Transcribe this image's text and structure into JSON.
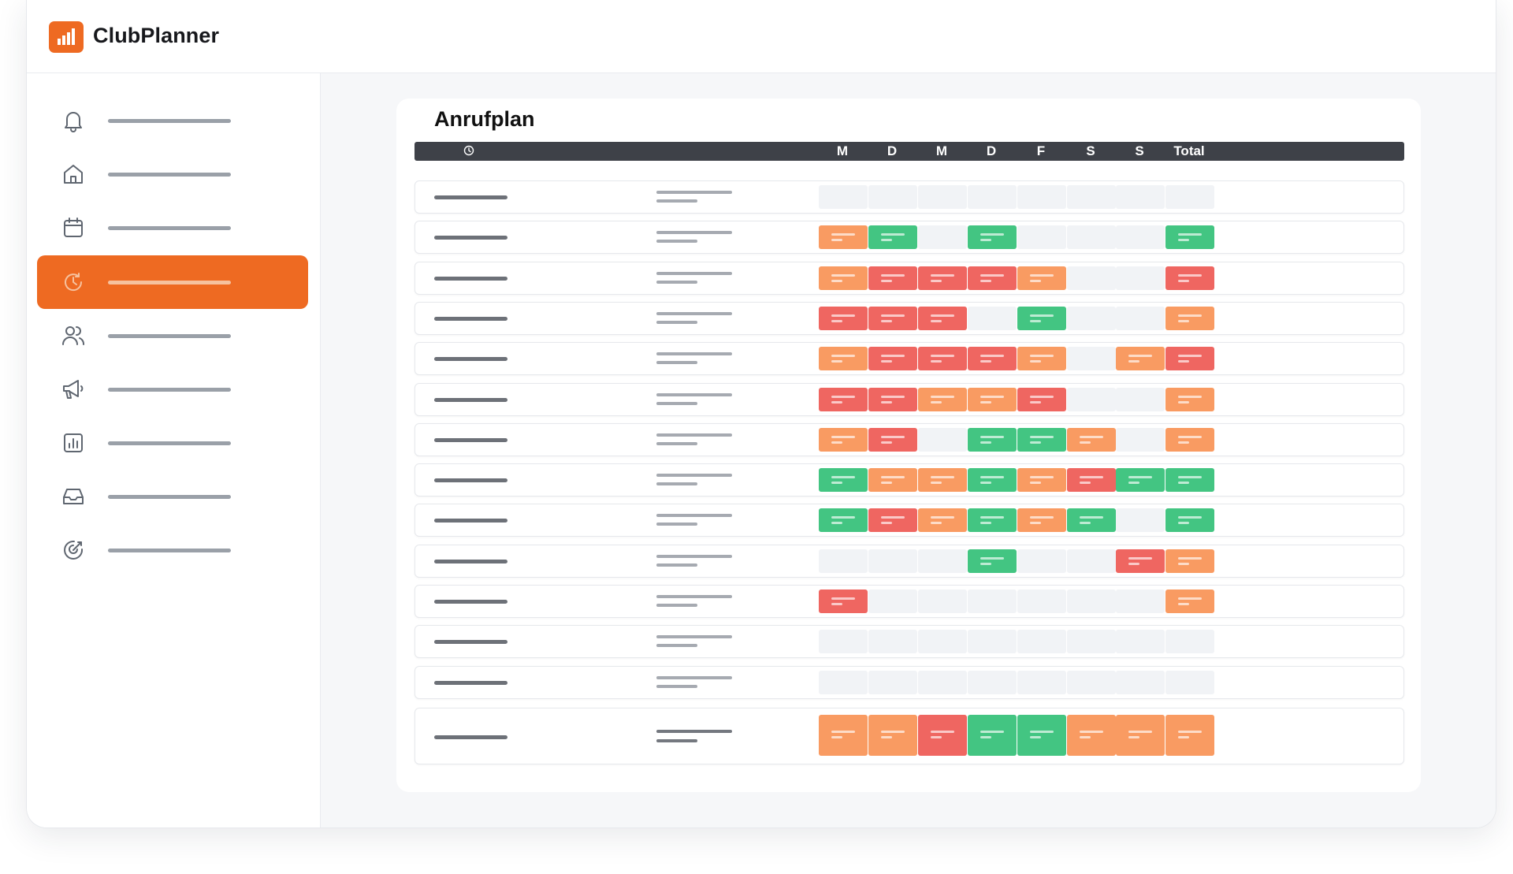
{
  "app": {
    "name": "ClubPlanner"
  },
  "colors": {
    "accent": "#ee6a22",
    "orange": "#f99b62",
    "red": "#ef6661",
    "green": "#43c582",
    "empty": "#f1f3f6"
  },
  "sidebar": {
    "items": [
      {
        "icon": "bell-icon",
        "active": false
      },
      {
        "icon": "home-icon",
        "active": false
      },
      {
        "icon": "calendar-icon",
        "active": false
      },
      {
        "icon": "clock-history-icon",
        "active": true
      },
      {
        "icon": "users-icon",
        "active": false
      },
      {
        "icon": "megaphone-icon",
        "active": false
      },
      {
        "icon": "bar-chart-icon",
        "active": false
      },
      {
        "icon": "inbox-icon",
        "active": false
      },
      {
        "icon": "target-icon",
        "active": false
      }
    ]
  },
  "card": {
    "title": "Anrufplan",
    "header_icon": "clock-icon",
    "days": [
      "M",
      "D",
      "M",
      "D",
      "F",
      "S",
      "S",
      "Total"
    ],
    "rows": [
      [
        "e",
        "e",
        "e",
        "e",
        "e",
        "e",
        "e",
        "e"
      ],
      [
        "o",
        "g",
        "e",
        "g",
        "e",
        "e",
        "e",
        "g"
      ],
      [
        "o",
        "r",
        "r",
        "r",
        "o",
        "e",
        "e",
        "r"
      ],
      [
        "r",
        "r",
        "r",
        "e",
        "g",
        "e",
        "e",
        "o"
      ],
      [
        "o",
        "r",
        "r",
        "r",
        "o",
        "e",
        "o",
        "r"
      ],
      [
        "r",
        "r",
        "o",
        "o",
        "r",
        "e",
        "e",
        "o"
      ],
      [
        "o",
        "r",
        "e",
        "g",
        "g",
        "o",
        "e",
        "o"
      ],
      [
        "g",
        "o",
        "o",
        "g",
        "o",
        "r",
        "g",
        "g"
      ],
      [
        "g",
        "r",
        "o",
        "g",
        "o",
        "g",
        "e",
        "g"
      ],
      [
        "e",
        "e",
        "e",
        "g",
        "e",
        "e",
        "r",
        "o"
      ],
      [
        "r",
        "e",
        "e",
        "e",
        "e",
        "e",
        "e",
        "o"
      ],
      [
        "e",
        "e",
        "e",
        "e",
        "e",
        "e",
        "e",
        "e"
      ],
      [
        "e",
        "e",
        "e",
        "e",
        "e",
        "e",
        "e",
        "e"
      ]
    ],
    "summary_row": [
      "o",
      "o",
      "r",
      "g",
      "g",
      "o",
      "o",
      "o"
    ]
  }
}
